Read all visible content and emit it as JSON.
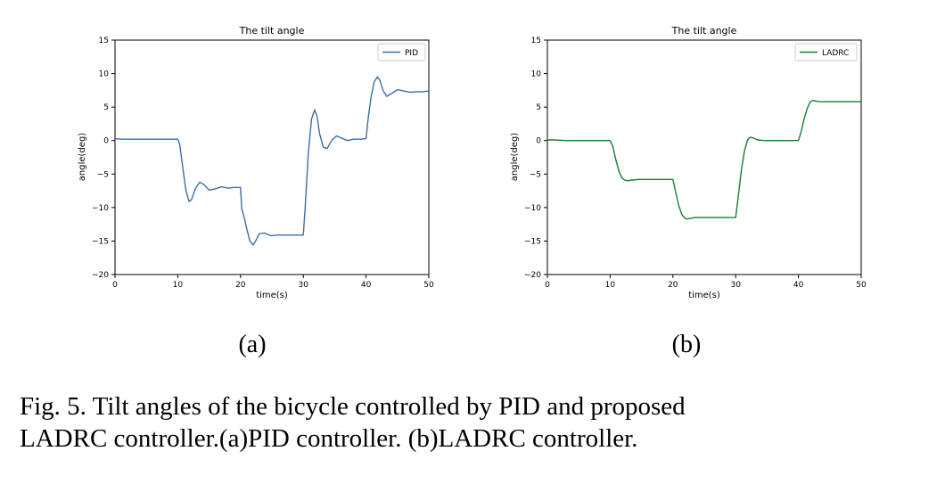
{
  "chart_data": [
    {
      "type": "line",
      "title": "The tilt angle",
      "xlabel": "time(s)",
      "ylabel": "angle(deg)",
      "xlim": [
        0,
        50
      ],
      "ylim": [
        -20,
        15
      ],
      "xticks": [
        0,
        10,
        20,
        30,
        40,
        50
      ],
      "yticks": [
        -20,
        -15,
        -10,
        -5,
        0,
        5,
        10,
        15
      ],
      "grid": false,
      "legend": "top-right",
      "series": [
        {
          "name": "PID",
          "color": "#3b6ea5",
          "x": [
            0,
            1,
            3,
            6,
            9,
            10,
            10.3,
            10.8,
            11.3,
            11.8,
            12.2,
            12.8,
            13.5,
            14.2,
            15,
            16,
            17,
            18,
            19,
            20,
            20.2,
            20.6,
            21,
            21.5,
            22,
            22.4,
            23,
            23.8,
            24.8,
            26,
            27.5,
            29,
            30,
            30.3,
            30.8,
            31.3,
            31.8,
            32.2,
            32.6,
            33.2,
            33.8,
            34.5,
            35.3,
            36,
            37,
            38,
            39,
            40,
            40.3,
            40.8,
            41.3,
            41.8,
            42.2,
            42.7,
            43.3,
            44,
            45,
            46,
            47,
            48,
            49,
            50
          ],
          "values": [
            0.3,
            0.2,
            0.2,
            0.2,
            0.2,
            0.2,
            -0.5,
            -4,
            -7.5,
            -9.1,
            -8.8,
            -7.2,
            -6.2,
            -6.6,
            -7.4,
            -7.2,
            -6.9,
            -7.1,
            -7.0,
            -7.0,
            -10.2,
            -11.5,
            -13.2,
            -15.0,
            -15.6,
            -15.0,
            -13.9,
            -13.8,
            -14.2,
            -14.1,
            -14.1,
            -14.1,
            -14.1,
            -10,
            -2,
            3.2,
            4.6,
            3.6,
            1.0,
            -1.0,
            -1.2,
            0,
            0.7,
            0.4,
            0,
            0.2,
            0.2,
            0.3,
            3.0,
            6.5,
            8.8,
            9.5,
            9.0,
            7.5,
            6.6,
            7.0,
            7.6,
            7.4,
            7.2,
            7.3,
            7.3,
            7.4
          ]
        }
      ]
    },
    {
      "type": "line",
      "title": "The tilt angle",
      "xlabel": "time(s)",
      "ylabel": "angle(deg)",
      "xlim": [
        0,
        50
      ],
      "ylim": [
        -20,
        15
      ],
      "xticks": [
        0,
        10,
        20,
        30,
        40,
        50
      ],
      "yticks": [
        -20,
        -15,
        -10,
        -5,
        0,
        5,
        10,
        15
      ],
      "grid": false,
      "legend": "top-right",
      "series": [
        {
          "name": "LADRC",
          "color": "#1e7b30",
          "x": [
            0,
            1,
            3,
            6,
            9,
            10,
            10.4,
            10.9,
            11.4,
            11.9,
            12.3,
            12.8,
            13.5,
            14.5,
            16,
            18,
            20,
            20.4,
            20.9,
            21.4,
            21.9,
            22.3,
            22.8,
            23.5,
            24.5,
            26,
            28,
            30,
            30.4,
            30.9,
            31.4,
            31.9,
            32.3,
            32.8,
            33.5,
            34.5,
            36,
            38,
            40,
            40.4,
            40.9,
            41.4,
            41.9,
            42.3,
            42.8,
            43.5,
            44.5,
            46,
            48,
            50
          ],
          "values": [
            0.1,
            0.1,
            0,
            0,
            0,
            0,
            -0.8,
            -2.8,
            -4.6,
            -5.6,
            -5.9,
            -6.0,
            -5.9,
            -5.8,
            -5.8,
            -5.8,
            -5.8,
            -7.5,
            -9.6,
            -11.0,
            -11.6,
            -11.7,
            -11.6,
            -11.5,
            -11.5,
            -11.5,
            -11.5,
            -11.5,
            -8.5,
            -4.5,
            -1.5,
            0.1,
            0.5,
            0.4,
            0.1,
            0,
            0,
            0,
            0,
            1.2,
            3.2,
            4.8,
            5.8,
            6.0,
            5.9,
            5.8,
            5.8,
            5.8,
            5.8,
            5.8
          ]
        }
      ]
    }
  ],
  "panels": [
    {
      "sublabel": "(a)"
    },
    {
      "sublabel": "(b)"
    }
  ],
  "caption": {
    "line1": "Fig. 5.  Tilt angles of the bicycle controlled by PID and proposed",
    "line2": "LADRC controller.(a)PID controller. (b)LADRC controller."
  }
}
